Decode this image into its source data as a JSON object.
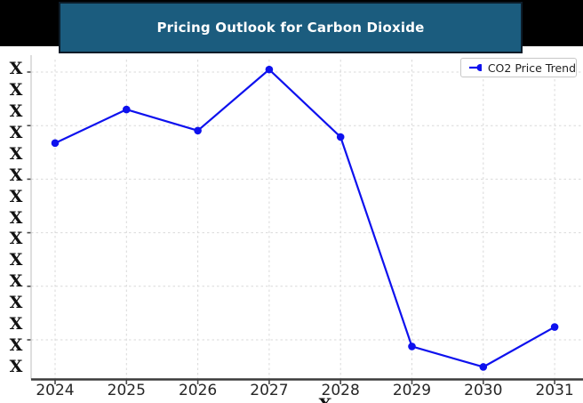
{
  "header": {
    "title": "Pricing Outlook for Carbon Dioxide"
  },
  "chart_data": {
    "type": "line",
    "title": "Pricing Outlook for Carbon Dioxide",
    "xlabel": "X",
    "x_tick_labels": [
      "2024",
      "2025",
      "2026",
      "2027",
      "2028",
      "2029",
      "2030",
      "2031"
    ],
    "y_tick_labels": [
      "X",
      "X",
      "X",
      "X",
      "X",
      "X",
      "X",
      "X",
      "X",
      "X",
      "X",
      "X",
      "X",
      "X",
      "X"
    ],
    "y_axis_note": "y-axis tick values are masked as the letter X in the source image",
    "grid": true,
    "legend": {
      "position": "upper-right",
      "entries": [
        {
          "label": "CO2 Price Trend"
        }
      ]
    },
    "series": [
      {
        "name": "CO2 Price Trend",
        "x": [
          2024,
          2025,
          2026,
          2027,
          2028,
          2029,
          2030,
          2031
        ],
        "y_norm": [
          0.739,
          0.844,
          0.778,
          0.969,
          0.758,
          0.103,
          0.039,
          0.164
        ],
        "marker": "circle",
        "line_style": "solid"
      }
    ]
  },
  "colors": {
    "banner_fill": "#1b5c7e",
    "banner_border": "#0c1c29",
    "top_bar": "#000000",
    "line": "#0e11ee",
    "grid": "#d9d9d9",
    "spine_left": "#c9c9c9",
    "spine_bottom": "#3c3c3c",
    "tick": "#4a4a4a",
    "axis_text": "#262626",
    "legend_border": "#c9c9c9",
    "title_text": "#ffffff"
  }
}
